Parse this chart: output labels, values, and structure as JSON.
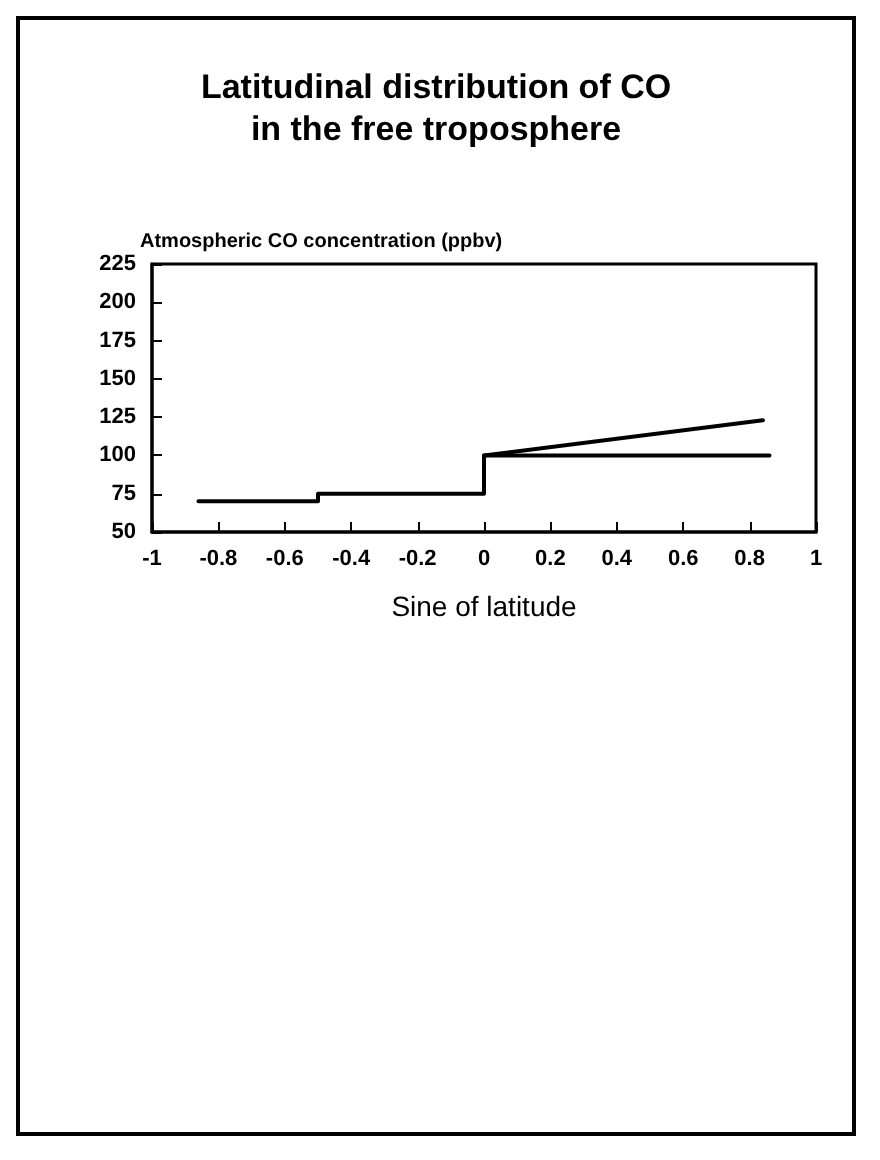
{
  "chart_data": {
    "type": "line",
    "title": "Latitudinal distribution of CO\nin the free troposphere",
    "xlabel": "Sine of latitude",
    "ylabel": "Atmospheric CO concentration (ppbv)",
    "series": [
      {
        "color": "#000000",
        "x": [
          -0.86,
          -0.5,
          -0.5,
          0,
          0,
          0.86
        ],
        "values": [
          70,
          70,
          75,
          75,
          100,
          100
        ]
      },
      {
        "color": "#000000",
        "x": [
          0,
          0.84
        ],
        "values": [
          100,
          123
        ]
      }
    ],
    "xlim": [
      -1,
      1
    ],
    "xticks": [
      -1,
      -0.8,
      -0.6,
      -0.4,
      -0.2,
      0,
      0.2,
      0.4,
      0.6,
      0.8,
      1
    ],
    "ylim": [
      50,
      225
    ],
    "yticks": [
      50,
      75,
      100,
      125,
      150,
      175,
      200,
      225
    ],
    "grid": false,
    "marker": "none",
    "line_style": "solid"
  }
}
